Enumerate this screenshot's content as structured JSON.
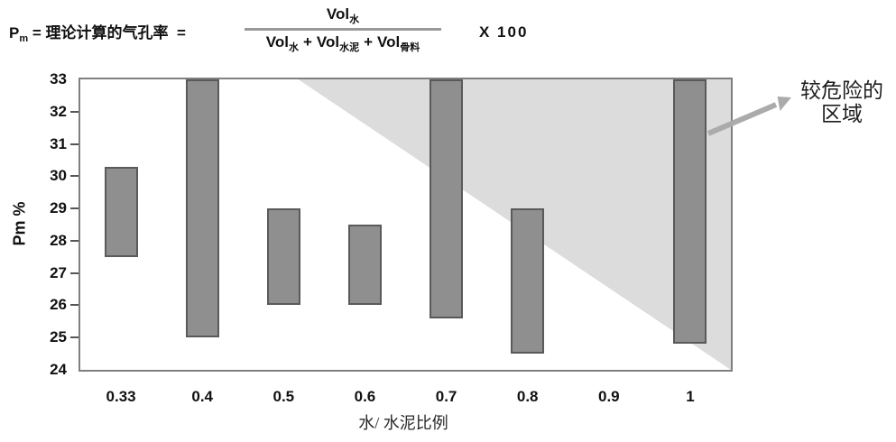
{
  "formula": {
    "symbol_base": "P",
    "symbol_sub": "m",
    "eq": "=",
    "definition": "理论计算的气孔率",
    "eq2": "=",
    "numerator": {
      "base": "Vol",
      "sub": "水"
    },
    "den_terms": [
      {
        "base": "Vol",
        "sub": "水"
      },
      {
        "base": "Vol",
        "sub": "水泥"
      },
      {
        "base": "Vol",
        "sub": "骨料"
      }
    ],
    "plus": "+",
    "multiplier": "X  100"
  },
  "chart_data": {
    "type": "bar",
    "variant": "floating-range-bars",
    "categories": [
      "0.33",
      "0.4",
      "0.5",
      "0.6",
      "0.7",
      "0.8",
      "0.9",
      "1"
    ],
    "ranges": [
      [
        27.5,
        30.3
      ],
      [
        25.0,
        33.0
      ],
      [
        26.0,
        29.0
      ],
      [
        26.0,
        28.5
      ],
      [
        25.6,
        33.0
      ],
      [
        24.5,
        29.0
      ],
      null,
      [
        24.8,
        33.0
      ]
    ],
    "xlabel": "水/ 水泥比例",
    "ylabel": "Pm  %",
    "ylim": [
      24,
      33
    ],
    "yticks": [
      24,
      25,
      26,
      27,
      28,
      29,
      30,
      31,
      32,
      33
    ],
    "grid": false,
    "legend": null,
    "bar_color": "#8f8f8f",
    "bar_border_color": "#5a5a5a",
    "danger_zone": {
      "label_line1": "较危险的",
      "label_line2": "区域",
      "color": "#dcdcdc",
      "apex_x_fraction": 0.335
    }
  }
}
